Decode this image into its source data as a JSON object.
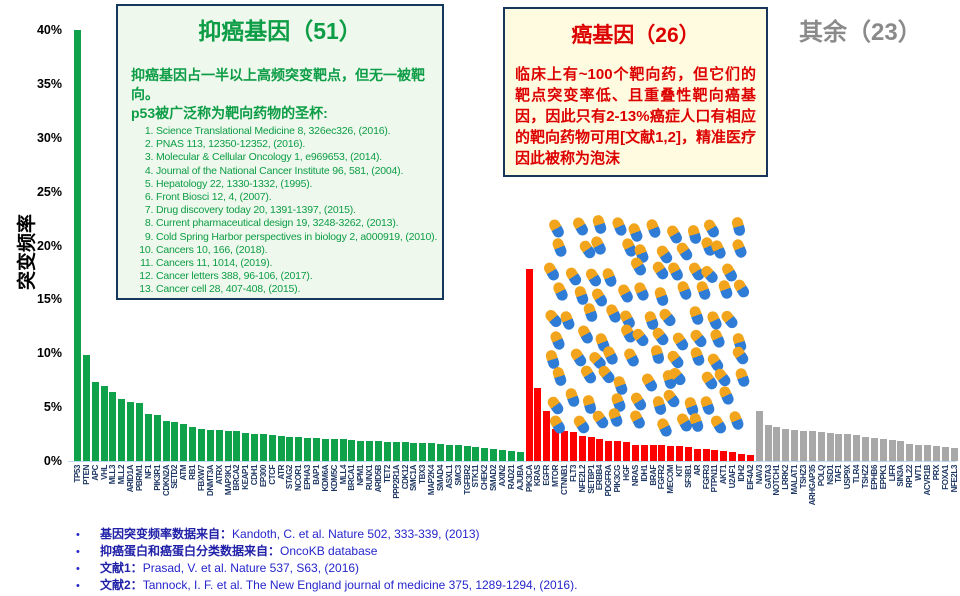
{
  "y_axis": {
    "title": "突变频率",
    "ticks": [
      {
        "label": "40%",
        "value": 40
      },
      {
        "label": "35%",
        "value": 35
      },
      {
        "label": "30%",
        "value": 30
      },
      {
        "label": "25%",
        "value": 25
      },
      {
        "label": "20%",
        "value": 20
      },
      {
        "label": "15%",
        "value": 15
      },
      {
        "label": "10%",
        "value": 10
      },
      {
        "label": "5%",
        "value": 5
      },
      {
        "label": "0%",
        "value": 0
      }
    ]
  },
  "chart_data": {
    "type": "bar",
    "ylabel": "突变频率",
    "ylim": [
      0,
      40
    ],
    "unit": "%",
    "grid": false,
    "series": [
      {
        "name": "抑癌基因",
        "count": 51,
        "color": "#0fa24a",
        "genes": [
          "TP53",
          "PTEN",
          "APC",
          "VHL",
          "MLL3",
          "MLL2",
          "ARID1A",
          "PBRM1",
          "NF1",
          "PIK3R1",
          "CDKN2A",
          "SETD2",
          "ATM",
          "RB1",
          "FBXW7",
          "DNMT3A",
          "ATRX",
          "MAP3K1",
          "BRCA2",
          "KEAP1",
          "CDH1",
          "EP300",
          "CTCF",
          "ATR",
          "STAG2",
          "NCOR1",
          "EPHA3",
          "BAP1",
          "KDM6A",
          "KDM5C",
          "MLL4",
          "BRCA1",
          "NPM1",
          "RUNX1",
          "ARID5B",
          "TET2",
          "PPP2R1A",
          "CDK12",
          "SMC1A",
          "TBX3",
          "MAP2K4",
          "SMAD4",
          "ASXL1",
          "SMC3",
          "TGFBR2",
          "STK11",
          "CHEK2",
          "SMAD2",
          "AXIN2",
          "RAD21",
          "AJUBA"
        ],
        "values": [
          40,
          9.8,
          7.3,
          7.0,
          6.4,
          5.8,
          5.5,
          5.4,
          4.4,
          4.3,
          3.7,
          3.6,
          3.4,
          3.2,
          3.0,
          2.9,
          2.9,
          2.8,
          2.8,
          2.6,
          2.5,
          2.5,
          2.4,
          2.3,
          2.25,
          2.2,
          2.15,
          2.1,
          2.05,
          2.0,
          2.0,
          1.95,
          1.9,
          1.9,
          1.85,
          1.8,
          1.8,
          1.75,
          1.7,
          1.7,
          1.65,
          1.6,
          1.5,
          1.45,
          1.4,
          1.3,
          1.2,
          1.1,
          1.0,
          0.9,
          0.85
        ]
      },
      {
        "name": "癌基因",
        "count": 26,
        "color": "#ff0000",
        "genes": [
          "PIK3CA",
          "KRAS",
          "EGFR",
          "MTOR",
          "CTNNB1",
          "FLT3",
          "NFE2L2",
          "SETBP1",
          "ERBB4",
          "PDGFRA",
          "PIK3CG",
          "HGF",
          "NRAS",
          "IDH1",
          "BRAF",
          "FGFR2",
          "MECOM",
          "KIT",
          "SF3B1",
          "AR",
          "FGFR3",
          "PTPN11",
          "AKT1",
          "U2AF1",
          "IDH2",
          "EIF4A2"
        ],
        "values": [
          17.8,
          6.8,
          4.6,
          3.0,
          2.8,
          2.7,
          2.3,
          2.2,
          2.0,
          1.9,
          1.85,
          1.8,
          1.5,
          1.5,
          1.5,
          1.45,
          1.4,
          1.35,
          1.3,
          1.1,
          1.1,
          1.0,
          0.9,
          0.8,
          0.65,
          0.6
        ]
      },
      {
        "name": "其余",
        "count": 23,
        "color": "#a8a8a8",
        "genes": [
          "NAV3",
          "GATA3",
          "NOTCH1",
          "LRRK2",
          "MALAT1",
          "TSHZ3",
          "ARHGAP35",
          "POLQ",
          "NSD1",
          "TAF1",
          "USP9X",
          "TLR4",
          "TSHZ2",
          "EPHB6",
          "EPPK1",
          "LIFR",
          "SIN3A",
          "RPL22",
          "WT1",
          "ACVR1B",
          "PRX",
          "FOXA1",
          "NFE2L3"
        ],
        "values": [
          4.6,
          3.3,
          3.2,
          3.0,
          2.9,
          2.8,
          2.75,
          2.7,
          2.6,
          2.55,
          2.5,
          2.4,
          2.2,
          2.1,
          2.0,
          1.95,
          1.85,
          1.6,
          1.5,
          1.45,
          1.4,
          1.3,
          1.2
        ]
      }
    ]
  },
  "green_box": {
    "title": "抑癌基因（51）",
    "body": "抑癌基因占一半以上高频突变靶点，但无一被靶向。",
    "p53_prefix": "p53被广泛称为",
    "p53_bold": "靶向药物的圣杯:",
    "references": [
      "Science Translational Medicine 8, 326ec326, (2016).",
      "PNAS 113, 12350-12352, (2016).",
      "Molecular & Cellular Oncology 1, e969653, (2014).",
      "Journal of the National Cancer Institute 96, 581, (2004).",
      "Hepatology 22, 1330-1332, (1995).",
      "Front Biosci 12, 4, (2007).",
      "Drug discovery today 20, 1391-1397, (2015).",
      "Current pharmaceutical design 19, 3248-3262, (2013).",
      "Cold Spring Harbor perspectives in biology 2, a000919, (2010).",
      "Cancers 10, 166, (2018).",
      "Cancers 11, 1014, (2019).",
      "Cancer letters 388, 96-106, (2017).",
      "Cancer cell 28, 407-408, (2015)."
    ]
  },
  "red_box": {
    "title": "癌基因（26）",
    "body_prefix": "临床上有~100个靶向药，但它们的靶点突变率低、且重叠性靶向癌基因，因此只有",
    "body_bold": "2-13%",
    "body_suffix": "癌症人口有相应的靶向药物可用[文献1,2]，精准医疗因此被称为泡沫"
  },
  "others_label": "其余（23）",
  "pills": {
    "count": 100,
    "top_color": "#f2a51c",
    "bottom_color": "#2e7cd6"
  },
  "footnotes": [
    {
      "label": "基因突变频率数据来自：",
      "text": "Kandoth, C. et al. Nature 502, 333-339, (2013)"
    },
    {
      "label": "抑癌蛋白和癌蛋白分类数据来自：",
      "text": "OncoKB database"
    },
    {
      "label": "文献1：",
      "text": "Prasad, V. et al. Nature 537, S63, (2016)"
    },
    {
      "label": "文献2：",
      "text": "Tannock, I. F. et al. The New England journal of medicine 375, 1289-1294, (2016)."
    }
  ]
}
